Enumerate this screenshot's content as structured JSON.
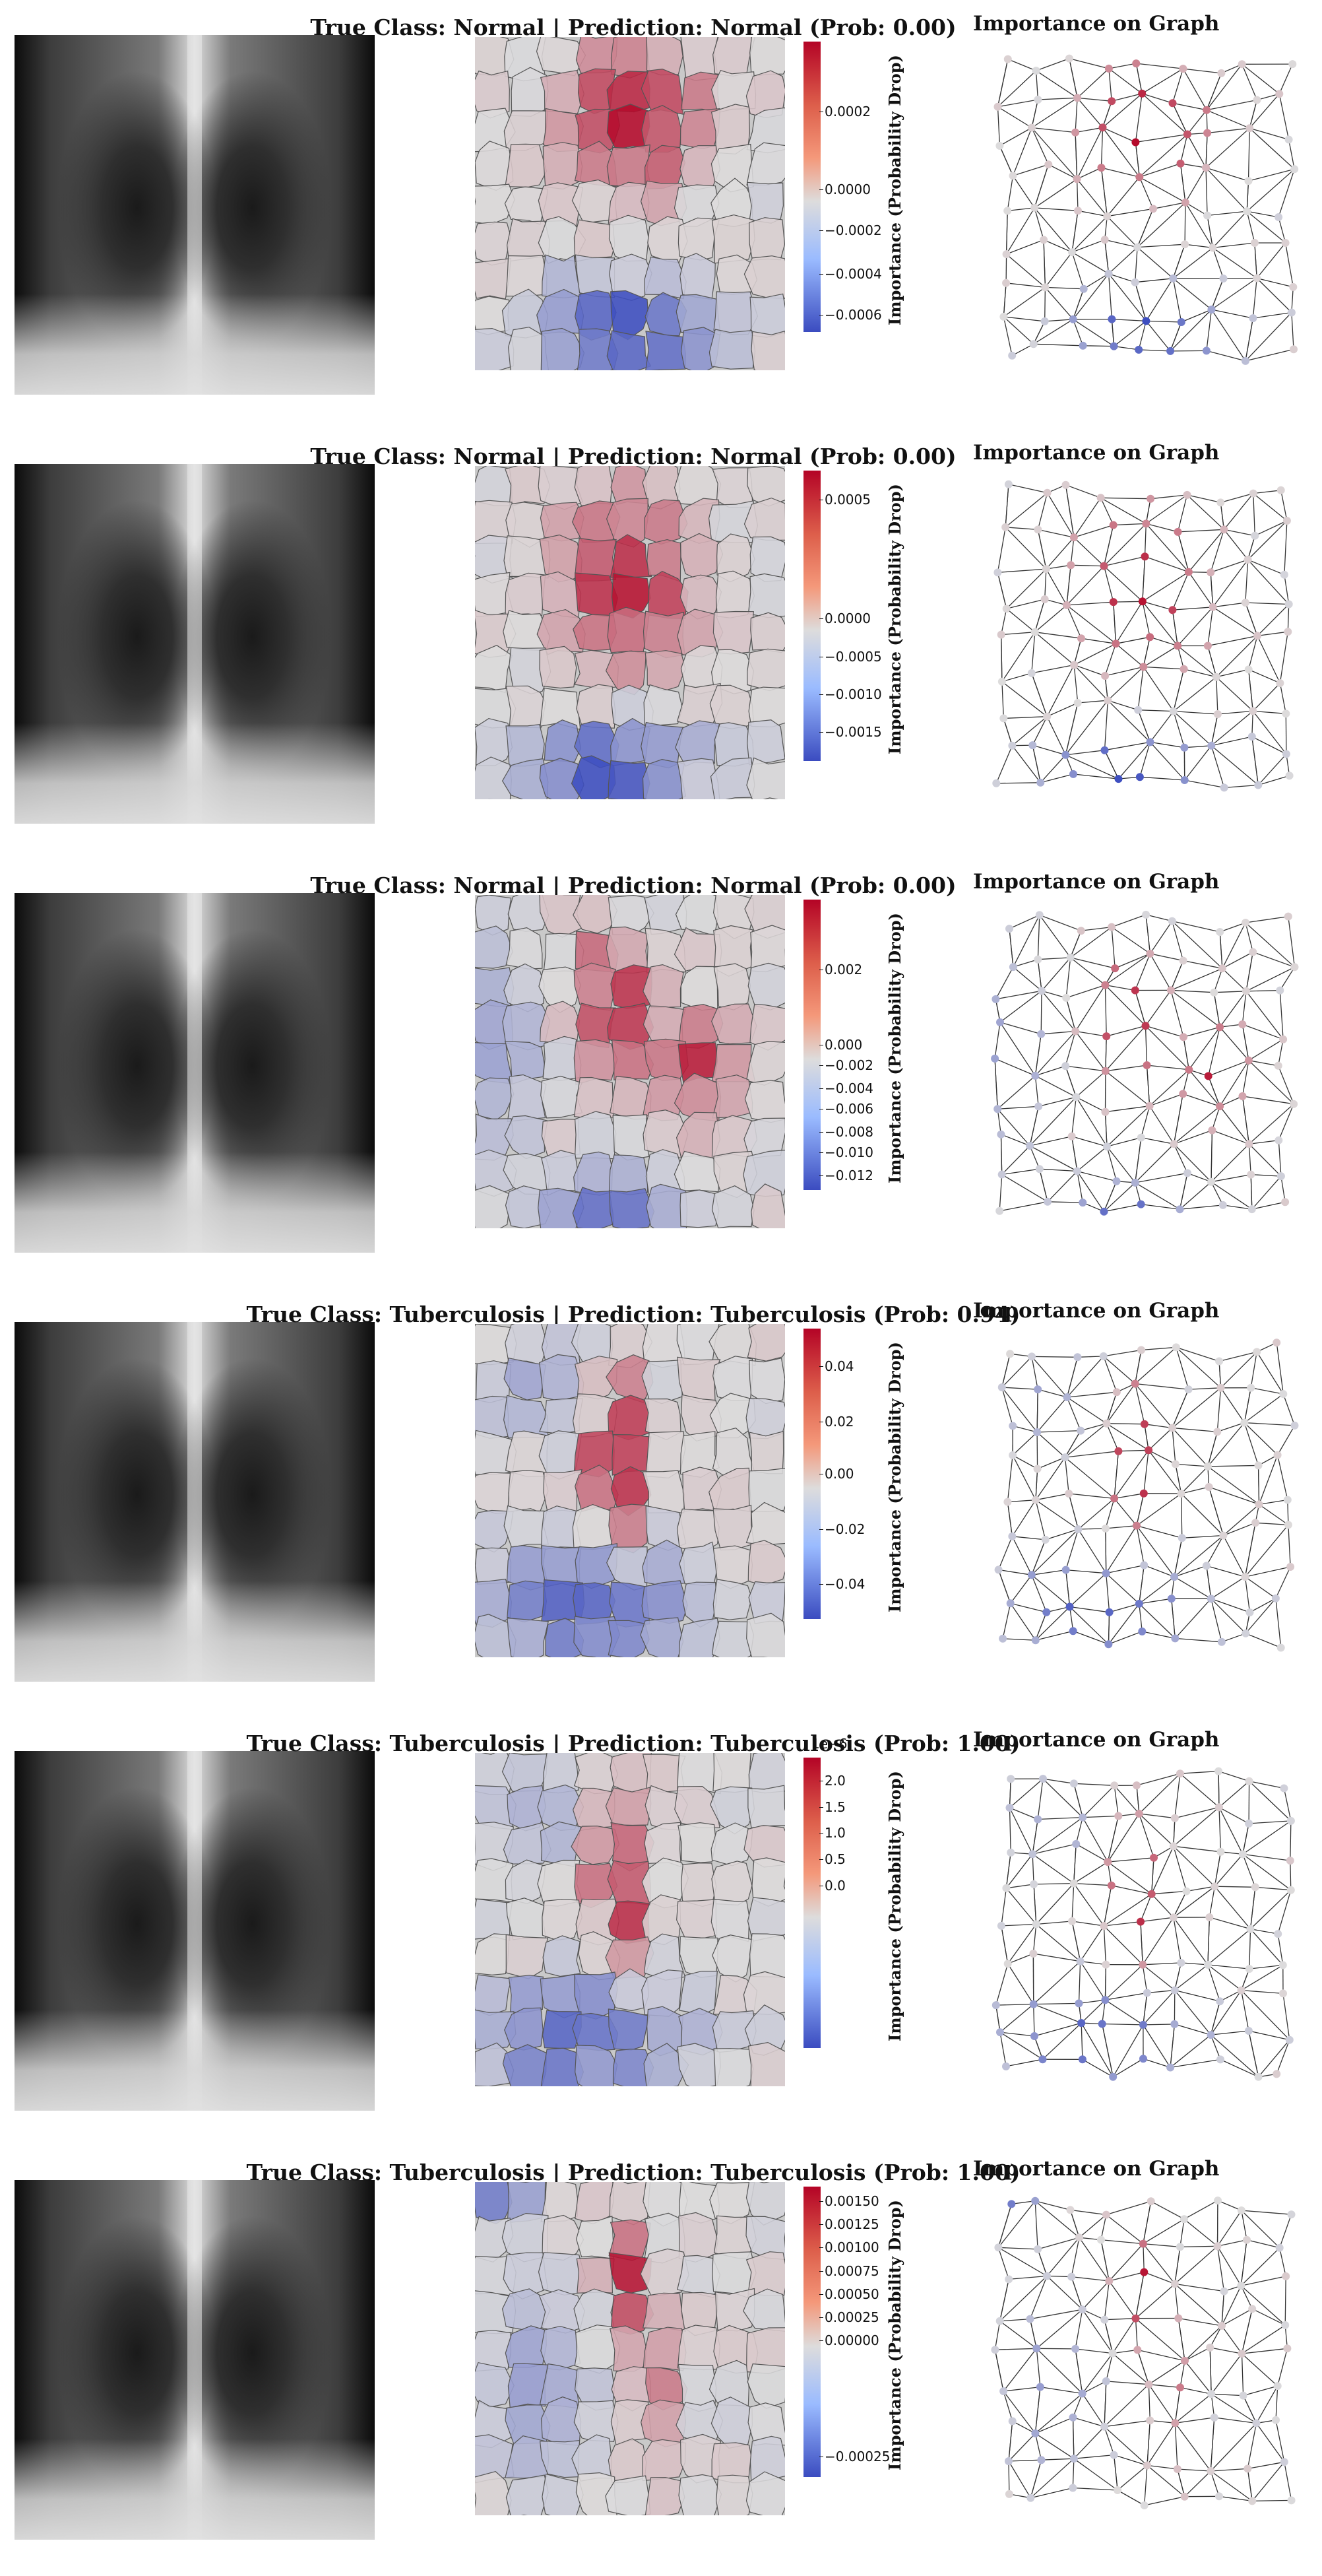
{
  "colors": {
    "high": "#b40426",
    "mid": "#dddcdc",
    "low": "#3b4cc0"
  },
  "chart_data": [
    {
      "type": "heatmap",
      "title": "True Class: Normal | Prediction: Normal (Prob: 0.00)",
      "graph_title": "Importance on Graph",
      "colorbar_label": "Importance (Probability Drop)",
      "colorbar_exponent": "",
      "colorbar_ticks": [
        "0.0002",
        "0.0000",
        "−0.0002",
        "−0.0004",
        "−0.0006"
      ],
      "tick_fractions": [
        0.24,
        0.51,
        0.65,
        0.8,
        0.94
      ],
      "range": [
        -0.0007,
        0.00045
      ],
      "focus": "upper-center"
    },
    {
      "type": "heatmap",
      "title": "True Class: Normal | Prediction: Normal (Prob: 0.00)",
      "graph_title": "Importance on Graph",
      "colorbar_label": "Importance (Probability Drop)",
      "colorbar_exponent": "",
      "colorbar_ticks": [
        "0.0005",
        "0.0000",
        "−0.0005",
        "−0.0010",
        "−0.0015"
      ],
      "tick_fractions": [
        0.1,
        0.51,
        0.64,
        0.77,
        0.9
      ],
      "range": [
        -0.0018,
        0.00065
      ],
      "focus": "center"
    },
    {
      "type": "heatmap",
      "title": "True Class: Normal | Prediction: Normal (Prob: 0.00)",
      "graph_title": "Importance on Graph",
      "colorbar_label": "Importance (Probability Drop)",
      "colorbar_exponent": "",
      "colorbar_ticks": [
        "0.002",
        "0.000",
        "−0.002",
        "−0.004",
        "−0.006",
        "−0.008",
        "−0.010",
        "−0.012"
      ],
      "tick_fractions": [
        0.24,
        0.5,
        0.57,
        0.65,
        0.72,
        0.8,
        0.87,
        0.95
      ],
      "range": [
        -0.013,
        0.0035
      ],
      "focus": "right-hilum"
    },
    {
      "type": "heatmap",
      "title": "True Class: Tuberculosis | Prediction: Tuberculosis (Prob: 0.94)",
      "graph_title": "Importance on Graph",
      "colorbar_label": "Importance (Probability Drop)",
      "colorbar_exponent": "",
      "colorbar_ticks": [
        "0.04",
        "0.02",
        "0.00",
        "−0.02",
        "−0.04"
      ],
      "tick_fractions": [
        0.13,
        0.32,
        0.5,
        0.69,
        0.88
      ],
      "range": [
        -0.05,
        0.05
      ],
      "focus": "mediastinum"
    },
    {
      "type": "heatmap",
      "title": "True Class: Tuberculosis | Prediction: Tuberculosis (Prob: 1.00)",
      "graph_title": "Importance on Graph",
      "colorbar_label": "Importance (Probability Drop)",
      "colorbar_exponent": "1e−6",
      "colorbar_ticks": [
        "2.0",
        "1.5",
        "1.0",
        "0.5",
        "0.0"
      ],
      "tick_fractions": [
        0.08,
        0.17,
        0.26,
        0.35,
        0.44
      ],
      "range": [
        -3.0,
        2.2
      ],
      "focus": "mediastinum"
    },
    {
      "type": "heatmap",
      "title": "True Class: Tuberculosis | Prediction: Tuberculosis (Prob: 1.00)",
      "graph_title": "Importance on Graph",
      "colorbar_label": "Importance (Probability Drop)",
      "colorbar_exponent": "",
      "colorbar_ticks": [
        "0.00150",
        "0.00125",
        "0.00100",
        "0.00075",
        "0.00050",
        "0.00025",
        "0.00000",
        "−0.00025"
      ],
      "tick_fractions": [
        0.05,
        0.13,
        0.21,
        0.29,
        0.37,
        0.45,
        0.53,
        0.93
      ],
      "range": [
        -0.0003,
        0.0016
      ],
      "focus": "upper-mediastinum"
    }
  ]
}
